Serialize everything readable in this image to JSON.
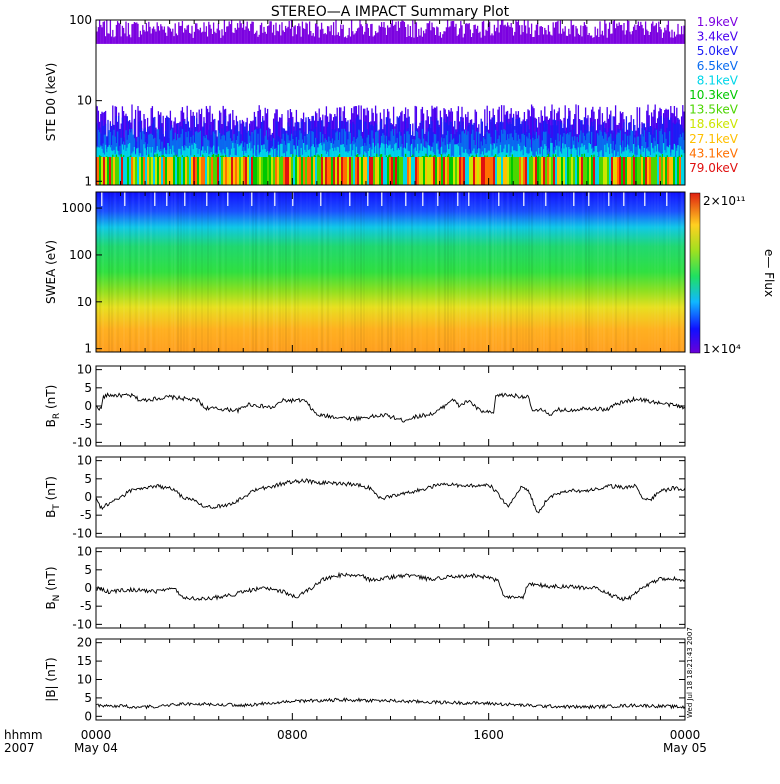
{
  "title": "STEREO—A IMPACT Summary Plot",
  "colors": {
    "axis": "#000000",
    "trace": "#000000",
    "ste_main": "#7B00E0"
  },
  "chart_data": [
    {
      "id": "ste",
      "type": "line",
      "ylabel": "STE D0 (keV)",
      "yscale": "log",
      "ylim": [
        0.9,
        100
      ],
      "yticks": [
        1,
        10,
        100
      ],
      "legend_placement": "right",
      "series": [
        {
          "name": "1.9keV",
          "color": "#7B00E0",
          "band": [
            60,
            100
          ]
        },
        {
          "name": "3.4keV",
          "color": "#4B00F0",
          "band": [
            3.4,
            9
          ]
        },
        {
          "name": "5.0keV",
          "color": "#1C1CF5",
          "band": [
            2.6,
            6.5
          ]
        },
        {
          "name": "6.5keV",
          "color": "#0A6CF0",
          "band": [
            2.2,
            4.5
          ]
        },
        {
          "name": "8.1keV",
          "color": "#00D6E8",
          "band": [
            1.9,
            3.0
          ]
        },
        {
          "name": "10.3keV",
          "color": "#00C800",
          "band": [
            1.5,
            2.2
          ]
        },
        {
          "name": "13.5keV",
          "color": "#4CD600",
          "band": [
            1.3,
            1.8
          ]
        },
        {
          "name": "18.6keV",
          "color": "#CCE600",
          "band": [
            1.2,
            1.5
          ]
        },
        {
          "name": "27.1keV",
          "color": "#FFC000",
          "band": [
            1.1,
            1.3
          ]
        },
        {
          "name": "43.1keV",
          "color": "#FF7000",
          "band": [
            1.05,
            1.2
          ]
        },
        {
          "name": "79.0keV",
          "color": "#E01010",
          "band": [
            1.0,
            1.1
          ]
        }
      ]
    },
    {
      "id": "swea",
      "type": "heatmap",
      "ylabel": "SWEA (eV)",
      "yscale": "log",
      "ylim": [
        0.85,
        2200
      ],
      "yticks": [
        1,
        10,
        100,
        1000
      ],
      "colorbar": {
        "label": "e— Flux",
        "max_label": "2×10¹¹",
        "min_label": "1×10⁴",
        "scale": "log",
        "range": [
          10000,
          200000000000
        ]
      }
    },
    {
      "id": "br",
      "type": "line",
      "ylabel": "B_R (nT)",
      "ylim": [
        -11,
        11
      ],
      "yticks": [
        -10,
        -5,
        0,
        5,
        10
      ],
      "series": [
        {
          "x": [
            0,
            0.2,
            0.3,
            0.5,
            1.5,
            1.8,
            3,
            4.2,
            4.4,
            5.8,
            6.2,
            7.2,
            7.6,
            8.5,
            9.0,
            10.5,
            11.8,
            12.5,
            13.0,
            13.8,
            14.2,
            14.5,
            14.8,
            15.2,
            15.5,
            15.7,
            16.2,
            16.3,
            16.8,
            17.6,
            17.8,
            18.3,
            18.5,
            18.8,
            19.2,
            19.5,
            20.0,
            20.8,
            21.2,
            22,
            22.8,
            23.2,
            23.8,
            24
          ],
          "y": [
            0,
            -1,
            2.5,
            3,
            2.8,
            1.5,
            2.5,
            1.5,
            -0.5,
            -1.2,
            0.5,
            -0.5,
            1.5,
            1.5,
            -2.5,
            -3.5,
            -2.5,
            -4,
            -3,
            -2,
            0,
            2,
            0,
            1.5,
            -0.5,
            -1.5,
            -2,
            3,
            3,
            2.5,
            -1.5,
            -1,
            -3,
            -1,
            -1.2,
            -1,
            -0.5,
            -1,
            0.5,
            2,
            1,
            0.5,
            0,
            -1
          ]
        }
      ]
    },
    {
      "id": "bt",
      "type": "line",
      "ylabel": "B_T (nT)",
      "ylim": [
        -11,
        11
      ],
      "yticks": [
        -10,
        -5,
        0,
        5,
        10
      ],
      "series": [
        {
          "x": [
            0,
            0.2,
            0.5,
            1.0,
            1.5,
            2.5,
            3.2,
            3.5,
            4.0,
            4.5,
            5.5,
            6.0,
            6.5,
            7.2,
            7.8,
            8.5,
            9.0,
            10.5,
            11.2,
            11.6,
            11.9,
            12.3,
            13.0,
            13.8,
            14.5,
            15.0,
            16.0,
            16.5,
            16.8,
            17.3,
            17.6,
            18.0,
            18.4,
            18.8,
            19.3,
            19.9,
            20.3,
            21.0,
            21.5,
            22,
            22.3,
            22.6,
            22.9,
            23.6,
            24
          ],
          "y": [
            0,
            -3,
            -2,
            0,
            2,
            3,
            2,
            0,
            -1,
            -3,
            -2,
            0,
            2,
            3,
            4,
            4.5,
            4,
            3.5,
            2.5,
            -0.5,
            0,
            0.5,
            1.5,
            3,
            3.5,
            3,
            3.5,
            0,
            -3,
            2.5,
            2,
            -4.5,
            -0.5,
            1,
            2,
            1.5,
            2,
            3,
            2.5,
            3,
            -0.5,
            -1,
            1.5,
            2.5,
            2
          ]
        }
      ]
    },
    {
      "id": "bn",
      "type": "line",
      "ylabel": "B_N (nT)",
      "ylim": [
        -11,
        11
      ],
      "yticks": [
        -10,
        -5,
        0,
        5,
        10
      ],
      "series": [
        {
          "x": [
            0,
            0.5,
            1.5,
            2.5,
            3.2,
            3.5,
            4.5,
            5.5,
            6.0,
            6.8,
            7.6,
            8.2,
            8.8,
            9.3,
            9.8,
            10.8,
            11.2,
            12.0,
            12.8,
            13.5,
            14.4,
            15.5,
            16.4,
            16.6,
            17.4,
            17.6,
            18.5,
            20.3,
            21.0,
            21.4,
            21.7,
            22.2,
            23.0,
            23.6,
            24
          ],
          "y": [
            0,
            -1,
            -0.5,
            -1,
            0,
            -2.5,
            -3,
            -2,
            -1,
            0,
            -1,
            -2.5,
            0,
            2.5,
            3.5,
            3.5,
            2,
            3,
            3.5,
            2.5,
            3,
            3.5,
            2,
            -2.5,
            -2.5,
            1,
            0.5,
            0,
            -2,
            -3,
            -3,
            0,
            2.5,
            2.5,
            2
          ]
        }
      ]
    },
    {
      "id": "bmag",
      "type": "line",
      "ylabel": "|B| (nT)",
      "ylim": [
        -1,
        21
      ],
      "yticks": [
        0,
        5,
        10,
        15,
        20
      ],
      "x_ticks": [
        "0000",
        "0800",
        "1600",
        "0000"
      ],
      "x_date_labels": [
        "May 04",
        "May 05"
      ],
      "xlim": [
        0,
        24
      ],
      "series": [
        {
          "x": [
            0,
            2,
            4,
            6,
            8,
            10,
            12,
            14,
            16,
            18,
            20,
            22,
            24
          ],
          "y": [
            3,
            2.5,
            3.5,
            3,
            4,
            4.5,
            4.2,
            3.8,
            3.5,
            2.8,
            2.5,
            3,
            2.5
          ]
        }
      ]
    }
  ],
  "axis_footer": {
    "time_label": "hhmm",
    "year_label": "2007"
  },
  "stamp": "Wed Jul 18 18:21:43 2007"
}
